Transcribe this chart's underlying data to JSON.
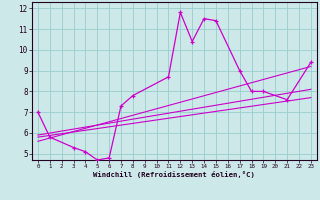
{
  "xlabel": "Windchill (Refroidissement éolien,°C)",
  "bg_color": "#cce8e8",
  "line_color": "#cc00cc",
  "grid_color": "#99cccc",
  "xlim": [
    -0.5,
    23.5
  ],
  "ylim": [
    4.7,
    12.3
  ],
  "yticks": [
    5,
    6,
    7,
    8,
    9,
    10,
    11,
    12
  ],
  "xticks": [
    0,
    1,
    2,
    3,
    4,
    5,
    6,
    7,
    8,
    9,
    10,
    11,
    12,
    13,
    14,
    15,
    16,
    17,
    18,
    19,
    20,
    21,
    22,
    23
  ],
  "lines": [
    {
      "x": [
        0,
        1,
        3,
        4,
        5,
        6,
        7,
        8,
        11,
        12,
        13,
        14,
        15,
        17,
        18,
        19,
        21,
        23
      ],
      "y": [
        7.0,
        5.8,
        5.3,
        5.1,
        4.7,
        4.8,
        7.3,
        7.8,
        8.7,
        11.8,
        10.4,
        11.5,
        11.4,
        9.0,
        8.0,
        8.0,
        7.6,
        9.4
      ]
    },
    {
      "x": [
        0,
        23
      ],
      "y": [
        5.9,
        8.1
      ]
    },
    {
      "x": [
        0,
        23
      ],
      "y": [
        5.8,
        7.7
      ]
    },
    {
      "x": [
        0,
        23
      ],
      "y": [
        5.6,
        9.2
      ]
    }
  ]
}
